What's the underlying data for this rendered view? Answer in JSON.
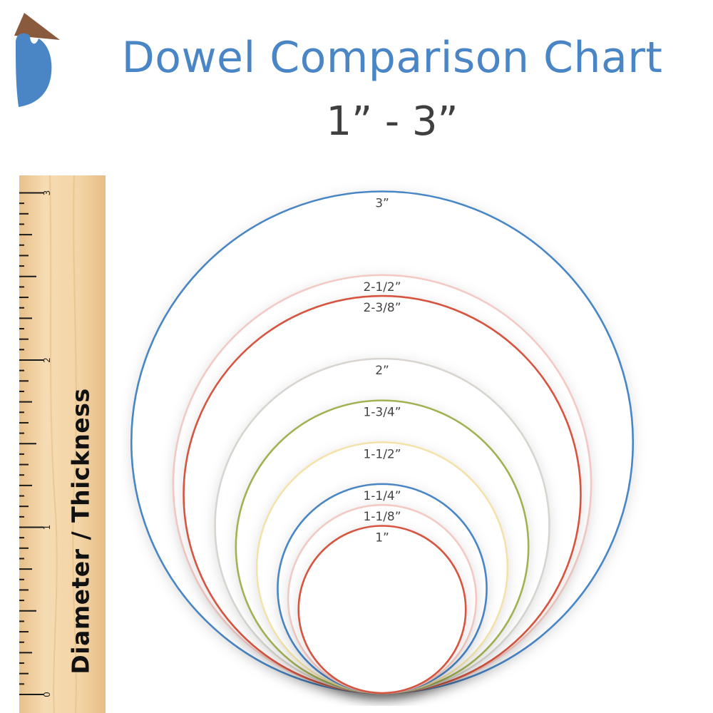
{
  "header": {
    "title": "Dowel Comparison Chart",
    "subtitle": "1” - 3”"
  },
  "logo": {
    "icon": "bird-logo-icon",
    "colors": {
      "head": "#8a5a3c",
      "body": "#4a86c5"
    }
  },
  "ruler": {
    "label": "Diameter / Thickness",
    "unit_labels": [
      "0",
      "1",
      "2",
      "3"
    ],
    "max_inches": 3,
    "ticks_per_inch": 16,
    "colors": {
      "wood": "#f1d3a6",
      "wood_dark": "#e3b97f",
      "tick": "#1a1a1a"
    }
  },
  "chart_data": {
    "type": "nested-circles",
    "unit": "inch",
    "dowels": [
      {
        "label": "3”",
        "diameter": 3,
        "color": "#4a86c5"
      },
      {
        "label": "2-1/2”",
        "diameter": 2.5,
        "color": "#f3c9c4"
      },
      {
        "label": "2-3/8”",
        "diameter": 2.375,
        "color": "#d65540"
      },
      {
        "label": "2”",
        "diameter": 2,
        "color": "#d8d4cf"
      },
      {
        "label": "1-3/4”",
        "diameter": 1.75,
        "color": "#a4b152"
      },
      {
        "label": "1-1/2”",
        "diameter": 1.5,
        "color": "#f3e2a9"
      },
      {
        "label": "1-1/4”",
        "diameter": 1.25,
        "color": "#4a86c5"
      },
      {
        "label": "1-1/8”",
        "diameter": 1.125,
        "color": "#f3c9c4"
      },
      {
        "label": "1”",
        "diameter": 1,
        "color": "#d65540"
      }
    ]
  }
}
